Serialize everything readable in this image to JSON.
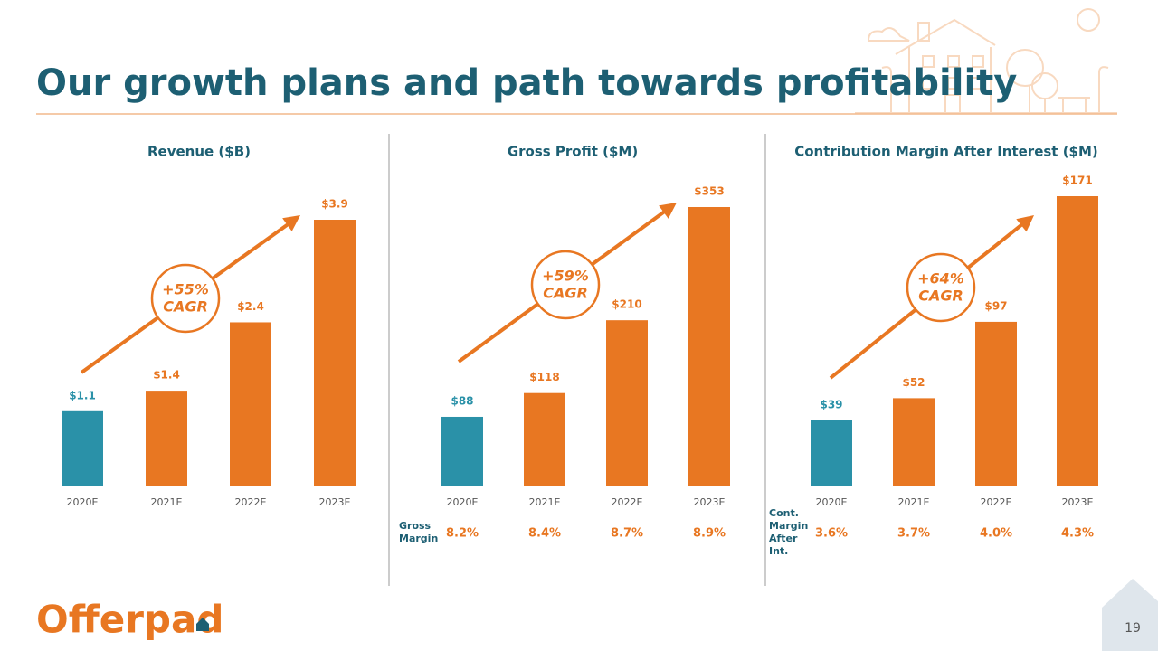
{
  "title": "Our growth plans and path towards profitability",
  "logo": "Offerpad",
  "page_number": 19,
  "chart_data": [
    {
      "type": "bar",
      "title": "Revenue ($B)",
      "categories": [
        "2020E",
        "2021E",
        "2022E",
        "2023E"
      ],
      "values": [
        1.1,
        1.4,
        2.4,
        3.9
      ],
      "value_labels": [
        "$1.1",
        "$1.4",
        "$2.4",
        "$3.9"
      ],
      "colors": [
        "#2a91a8",
        "#e87722",
        "#e87722",
        "#e87722"
      ],
      "cagr": "+55%",
      "cagr_label": "CAGR"
    },
    {
      "type": "bar",
      "title": "Gross Profit ($M)",
      "categories": [
        "2020E",
        "2021E",
        "2022E",
        "2023E"
      ],
      "values": [
        88,
        118,
        210,
        353
      ],
      "value_labels": [
        "$88",
        "$118",
        "$210",
        "$353"
      ],
      "colors": [
        "#2a91a8",
        "#e87722",
        "#e87722",
        "#e87722"
      ],
      "cagr": "+59%",
      "cagr_label": "CAGR",
      "margin_label": "Gross Margin",
      "margin_values": [
        8.2,
        8.4,
        8.7,
        8.9
      ],
      "margin_value_labels": [
        "8.2%",
        "8.4%",
        "8.7%",
        "8.9%"
      ]
    },
    {
      "type": "bar",
      "title": "Contribution Margin After Interest ($M)",
      "categories": [
        "2020E",
        "2021E",
        "2022E",
        "2023E"
      ],
      "values": [
        39,
        52,
        97,
        171
      ],
      "value_labels": [
        "$39",
        "$52",
        "$97",
        "$171"
      ],
      "colors": [
        "#2a91a8",
        "#e87722",
        "#e87722",
        "#e87722"
      ],
      "cagr": "+64%",
      "cagr_label": "CAGR",
      "margin_label": "Cont. Margin After Int.",
      "margin_values": [
        3.6,
        3.7,
        4.0,
        4.3
      ],
      "margin_value_labels": [
        "3.6%",
        "3.7%",
        "4.0%",
        "4.3%"
      ]
    }
  ]
}
